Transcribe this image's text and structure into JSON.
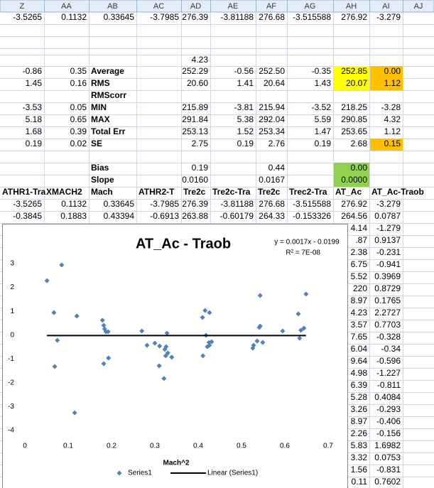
{
  "column_headers": [
    "Z",
    "AA",
    "AB",
    "AC",
    "AD",
    "AE",
    "AF",
    "AG",
    "AH",
    "AI",
    "AJ"
  ],
  "rows": [
    {
      "cells": [
        "-3.5265",
        "0.1132",
        "0.33645",
        "-3.7985",
        "276.39",
        "-3.81188",
        "276.68",
        "-3.515588",
        "276.92",
        "-3.279"
      ]
    },
    {
      "cells": [
        null,
        null,
        null,
        null,
        "4.23"
      ]
    },
    {
      "cells": [
        "-0.86",
        "0.35",
        "Average",
        null,
        "252.29",
        "-0.56",
        "252.50",
        "-0.35",
        {
          "text": "252.85",
          "fill": "#ffff00"
        },
        {
          "text": "0.00",
          "fill": "#ffc000"
        }
      ]
    },
    {
      "cells": [
        "1.45",
        "0.16",
        "RMS",
        null,
        "20.60",
        "1.41",
        "20.64",
        "1.43",
        {
          "text": "20.07",
          "fill": "#ffff00"
        },
        {
          "text": "1.12",
          "fill": "#ffc000"
        }
      ]
    },
    {
      "cells": [
        null,
        null,
        "RMScorr"
      ]
    },
    {
      "cells": [
        "-3.53",
        "0.05",
        "MIN",
        null,
        "215.89",
        "-3.81",
        "215.94",
        "-3.52",
        "218.25",
        "-3.28"
      ]
    },
    {
      "cells": [
        "5.18",
        "0.65",
        "MAX",
        null,
        "291.84",
        "5.38",
        "292.04",
        "5.59",
        "290.85",
        "4.32"
      ]
    },
    {
      "cells": [
        "1.68",
        "0.39",
        "Total Err",
        null,
        "253.13",
        "1.52",
        "253.34",
        "1.47",
        "253.65",
        "1.12"
      ]
    },
    {
      "cells": [
        "0.19",
        "0.02",
        "SE",
        null,
        "2.75",
        "0.19",
        "2.76",
        "0.19",
        "2.68",
        {
          "text": "0.15",
          "fill": "#ffc000"
        }
      ]
    },
    {
      "cells": [
        null,
        null,
        "Bias",
        null,
        "0.19",
        null,
        "0.44",
        null,
        {
          "text": "0.00",
          "fill": "#92d050"
        }
      ]
    },
    {
      "cells": [
        null,
        null,
        "Slope",
        null,
        "0.0160",
        null,
        "0.0167",
        null,
        {
          "text": "0.0000",
          "fill": "#92d050"
        }
      ]
    },
    {
      "cells": [
        "ATHR1-Tra",
        "XMACH2",
        "Mach",
        "ATHR2-T",
        "Tre2c",
        "Tre2c-Tra",
        "Tre2c",
        "Trec2-Tra",
        "AT_Ac",
        "AT_Ac-Traob"
      ]
    },
    {
      "cells": [
        "-3.5265",
        "0.1132",
        "0.33645",
        "-3.7985",
        "276.39",
        "-3.81188",
        "276.68",
        "-3.515588",
        "276.92",
        "-3.279"
      ]
    },
    {
      "cells": [
        "-0.3845",
        "0.1883",
        "0.43394",
        "-0.6913",
        "263.88",
        "-0.60179",
        "264.33",
        "-0.153326",
        "264.56",
        "0.0787"
      ]
    },
    {
      "cells": [
        null,
        null,
        null,
        null,
        null,
        null,
        null,
        null,
        "4.14",
        "-1.279"
      ]
    },
    {
      "cells": [
        null,
        null,
        null,
        null,
        null,
        null,
        null,
        null,
        ".87",
        "0.9137"
      ]
    },
    {
      "cells": [
        null,
        null,
        null,
        null,
        null,
        null,
        null,
        null,
        "2.38",
        "-0.231"
      ]
    },
    {
      "cells": [
        null,
        null,
        null,
        null,
        null,
        null,
        null,
        null,
        "6.75",
        "-0.941"
      ]
    },
    {
      "cells": [
        null,
        null,
        null,
        null,
        null,
        null,
        null,
        null,
        "5.52",
        "0.3969"
      ]
    },
    {
      "cells": [
        null,
        null,
        null,
        null,
        null,
        null,
        null,
        null,
        "220",
        "0.8729"
      ]
    },
    {
      "cells": [
        null,
        null,
        null,
        null,
        null,
        null,
        null,
        null,
        "8.97",
        "0.1765"
      ]
    },
    {
      "cells": [
        null,
        null,
        null,
        null,
        null,
        null,
        null,
        null,
        "4.23",
        "2.2727"
      ]
    },
    {
      "cells": [
        null,
        null,
        null,
        null,
        null,
        null,
        null,
        null,
        "3.57",
        "0.7703"
      ]
    },
    {
      "cells": [
        null,
        null,
        null,
        null,
        null,
        null,
        null,
        null,
        "7.65",
        "-0.328"
      ]
    },
    {
      "cells": [
        null,
        null,
        null,
        null,
        null,
        null,
        null,
        null,
        "6.04",
        "-0.34"
      ]
    },
    {
      "cells": [
        null,
        null,
        null,
        null,
        null,
        null,
        null,
        null,
        "9.64",
        "-0.596"
      ]
    },
    {
      "cells": [
        null,
        null,
        null,
        null,
        null,
        null,
        null,
        null,
        "4.98",
        "-1.227"
      ]
    },
    {
      "cells": [
        null,
        null,
        null,
        null,
        null,
        null,
        null,
        null,
        "6.39",
        "-0.811"
      ]
    },
    {
      "cells": [
        null,
        null,
        null,
        null,
        null,
        null,
        null,
        null,
        "5.28",
        "0.4084"
      ]
    },
    {
      "cells": [
        null,
        null,
        null,
        null,
        null,
        null,
        null,
        null,
        "3.26",
        "-0.293"
      ]
    },
    {
      "cells": [
        null,
        null,
        null,
        null,
        null,
        null,
        null,
        null,
        "8.97",
        "-0.406"
      ]
    },
    {
      "cells": [
        null,
        null,
        null,
        null,
        null,
        null,
        null,
        null,
        "2.26",
        "-0.156"
      ]
    },
    {
      "cells": [
        null,
        null,
        null,
        null,
        null,
        null,
        null,
        null,
        "5.83",
        "1.6982"
      ]
    },
    {
      "cells": [
        null,
        null,
        null,
        null,
        null,
        null,
        null,
        null,
        "3.32",
        "0.0753"
      ]
    },
    {
      "cells": [
        null,
        null,
        null,
        null,
        null,
        null,
        null,
        null,
        "1.56",
        "-0.831"
      ]
    },
    {
      "cells": [
        null,
        null,
        null,
        null,
        null,
        null,
        null,
        null,
        "0.11",
        "0.7602"
      ]
    }
  ],
  "chart_data": {
    "type": "scatter",
    "title": "AT_Ac - Traob",
    "x_label": "Mach^2",
    "xlim": [
      0,
      0.7
    ],
    "xticks": [
      0,
      0.1,
      0.2,
      0.3,
      0.4,
      0.5,
      0.6,
      0.7
    ],
    "ylim": [
      -4,
      3
    ],
    "yticks": [
      -4,
      -3,
      -2,
      -1,
      0,
      1,
      2,
      3
    ],
    "series": [
      {
        "name": "Series1",
        "color": "#4f81bd",
        "x": [
          0.051,
          0.085,
          0.067,
          0.075,
          0.069,
          0.12,
          0.115,
          0.179,
          0.182,
          0.184,
          0.187,
          0.192,
          0.182,
          0.193,
          0.27,
          0.282,
          0.3,
          0.31,
          0.311,
          0.323,
          0.321,
          0.325,
          0.326,
          0.328,
          0.33,
          0.339,
          0.41,
          0.416,
          0.426,
          0.411,
          0.418,
          0.421,
          0.425,
          0.426,
          0.431,
          0.526,
          0.528,
          0.536,
          0.541,
          0.543,
          0.543,
          0.549,
          0.595,
          0.631,
          0.634,
          0.637,
          0.644,
          0.649
        ],
        "values": [
          2.28,
          2.94,
          0.94,
          -0.22,
          -1.32,
          0.8,
          -3.26,
          0.62,
          0.41,
          0.26,
          0.14,
          0.14,
          -1.2,
          -0.96,
          0.17,
          -0.43,
          -0.34,
          -1.29,
          -0.46,
          -0.6,
          -1.82,
          -0.87,
          -0.49,
          0.08,
          -0.75,
          -0.93,
          0.74,
          1.03,
          0.94,
          -0.87,
          -0.01,
          -0.49,
          -0.31,
          -0.43,
          -0.28,
          -0.55,
          -0.43,
          -0.25,
          0.32,
          0.38,
          1.66,
          -0.31,
          0.17,
          0.89,
          -0.13,
          0.2,
          0.29,
          1.72
        ]
      }
    ],
    "trendline": {
      "name": "Linear (Series1)",
      "color": "#000000",
      "equation": "y = 0.0017x - 0.0199",
      "r_squared": "R² = 7E-08",
      "slope": 0.0017,
      "intercept": -0.0199
    }
  }
}
